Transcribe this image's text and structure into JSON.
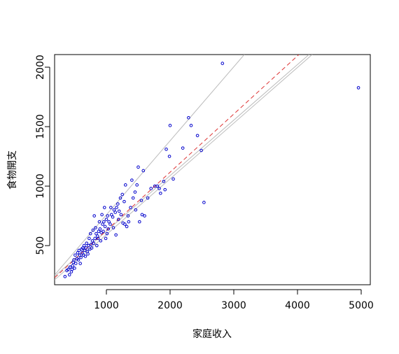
{
  "chart_data": {
    "type": "scatter",
    "x_label": "家庭收入",
    "y_label": "食物開支",
    "xlim": [
      187,
      5143
    ],
    "ylim": [
      171,
      2106
    ],
    "xticks": [
      1000,
      2000,
      3000,
      4000,
      5000
    ],
    "yticks": [
      500,
      1000,
      1500,
      2000
    ],
    "series": [
      {
        "color": "#0000cc",
        "x": [
          420,
          380,
          450,
          470,
          500,
          520,
          480,
          540,
          560,
          580,
          600,
          620,
          640,
          660,
          680,
          700,
          720,
          740,
          760,
          780,
          800,
          820,
          840,
          860,
          880,
          900,
          920,
          940,
          960,
          980,
          1000,
          1020,
          1040,
          1060,
          1080,
          1100,
          1120,
          1140,
          1160,
          1180,
          1200,
          1220,
          1250,
          1280,
          1300,
          1320,
          1350,
          1380,
          1400,
          1420,
          1450,
          1480,
          1500,
          1520,
          1550,
          1580,
          1600,
          1650,
          1700,
          1760,
          1800,
          1830,
          1850,
          1900,
          1920,
          1940,
          1990,
          2000,
          2050,
          2200,
          2290,
          2330,
          2430,
          2490,
          2532,
          2822,
          4957,
          350,
          400,
          430,
          460,
          490,
          510,
          550,
          570,
          590,
          610,
          630,
          650,
          670,
          690,
          710,
          730,
          750,
          770,
          790,
          810,
          830,
          850,
          870,
          890,
          910,
          930,
          950,
          970,
          990,
          1010,
          1030,
          1070,
          1110,
          1150,
          1190,
          1230,
          1260,
          1290,
          1340,
          1460,
          1560
        ],
        "values": [
          255,
          290,
          280,
          330,
          310,
          350,
          360,
          390,
          380,
          420,
          400,
          440,
          420,
          460,
          480,
          450,
          500,
          470,
          510,
          540,
          520,
          560,
          600,
          580,
          620,
          640,
          610,
          680,
          700,
          660,
          720,
          750,
          700,
          680,
          760,
          740,
          800,
          780,
          820,
          850,
          790,
          900,
          930,
          870,
          1010,
          660,
          700,
          820,
          1050,
          900,
          950,
          1010,
          1160,
          700,
          880,
          1130,
          750,
          900,
          980,
          1000,
          1000,
          980,
          940,
          1040,
          970,
          1310,
          1250,
          1510,
          1060,
          1320,
          1575,
          1510,
          1425,
          1300,
          863,
          2032,
          1827,
          240,
          300,
          320,
          300,
          380,
          420,
          440,
          460,
          350,
          470,
          480,
          500,
          410,
          520,
          430,
          560,
          600,
          480,
          630,
          750,
          650,
          500,
          560,
          700,
          540,
          760,
          620,
          820,
          560,
          600,
          640,
          820,
          650,
          590,
          720,
          760,
          690,
          680,
          750,
          800,
          760
        ]
      }
    ],
    "lines": [
      {
        "color": "#bbbbbb",
        "dashed": false,
        "x": [
          187,
          3165
        ],
        "values": [
          253,
          2106
        ]
      },
      {
        "color": "#bbbbbb",
        "dashed": false,
        "x": [
          187,
          4180
        ],
        "values": [
          242,
          2106
        ]
      },
      {
        "color": "#bbbbbb",
        "dashed": false,
        "x": [
          187,
          4231
        ],
        "values": [
          212,
          2106
        ]
      },
      {
        "color": "#dd3333",
        "dashed": true,
        "x": [
          187,
          4022
        ],
        "values": [
          230,
          2106
        ]
      }
    ]
  }
}
